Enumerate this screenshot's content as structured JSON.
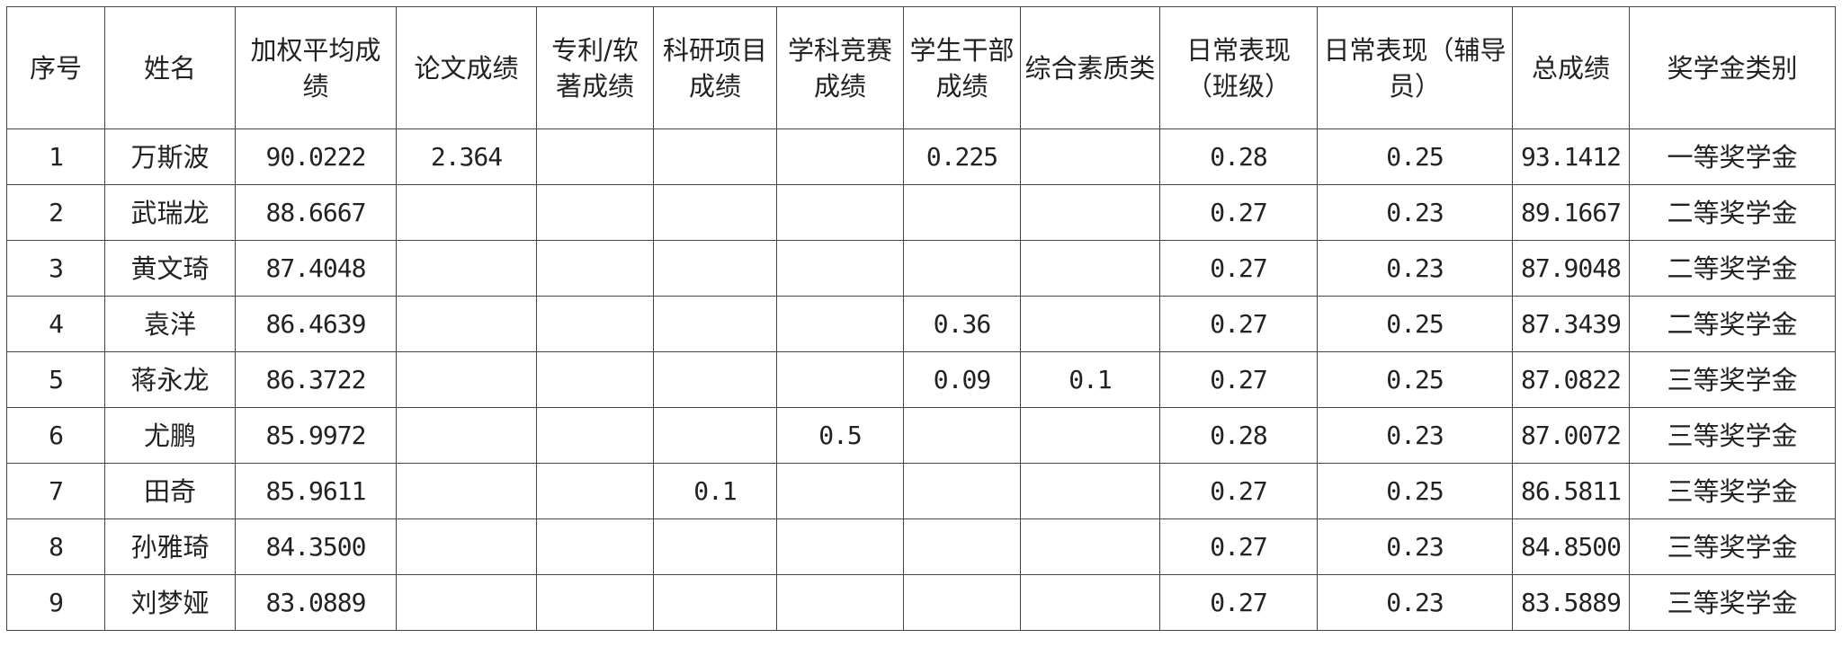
{
  "headers": [
    "序号",
    "姓名",
    "加权平均成绩",
    "论文成绩",
    "专利/软著成绩",
    "科研项目成绩",
    "学科竞赛成绩",
    "学生干部成绩",
    "综合素质类",
    "日常表现（班级）",
    "日常表现（辅导员）",
    "总成绩",
    "奖学金类别"
  ],
  "rows": [
    [
      "1",
      "万斯波",
      "90.0222",
      "2.364",
      "",
      "",
      "",
      "0.225",
      "",
      "0.28",
      "0.25",
      "93.1412",
      "一等奖学金"
    ],
    [
      "2",
      "武瑞龙",
      "88.6667",
      "",
      "",
      "",
      "",
      "",
      "",
      "0.27",
      "0.23",
      "89.1667",
      "二等奖学金"
    ],
    [
      "3",
      "黄文琦",
      "87.4048",
      "",
      "",
      "",
      "",
      "",
      "",
      "0.27",
      "0.23",
      "87.9048",
      "二等奖学金"
    ],
    [
      "4",
      "袁洋",
      "86.4639",
      "",
      "",
      "",
      "",
      "0.36",
      "",
      "0.27",
      "0.25",
      "87.3439",
      "二等奖学金"
    ],
    [
      "5",
      "蒋永龙",
      "86.3722",
      "",
      "",
      "",
      "",
      "0.09",
      "0.1",
      "0.27",
      "0.25",
      "87.0822",
      "三等奖学金"
    ],
    [
      "6",
      "尤鹏",
      "85.9972",
      "",
      "",
      "",
      "0.5",
      "",
      "",
      "0.28",
      "0.23",
      "87.0072",
      "三等奖学金"
    ],
    [
      "7",
      "田奇",
      "85.9611",
      "",
      "",
      "0.1",
      "",
      "",
      "",
      "0.27",
      "0.25",
      "86.5811",
      "三等奖学金"
    ],
    [
      "8",
      "孙雅琦",
      "84.3500",
      "",
      "",
      "",
      "",
      "",
      "",
      "0.27",
      "0.23",
      "84.8500",
      "三等奖学金"
    ],
    [
      "9",
      "刘梦娅",
      "83.0889",
      "",
      "",
      "",
      "",
      "",
      "",
      "0.27",
      "0.23",
      "83.5889",
      "三等奖学金"
    ]
  ]
}
